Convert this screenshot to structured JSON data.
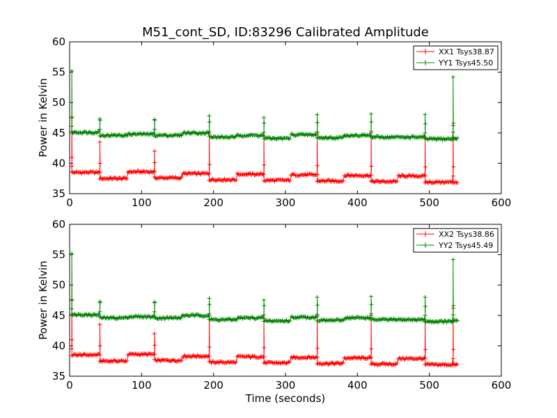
{
  "title": "M51_cont_SD, ID:83296 Calibrated Amplitude",
  "colors": {
    "xx": "#ff0000",
    "yy": "#008000"
  },
  "chart_data": [
    {
      "type": "line",
      "position": "top",
      "ylabel": "Power in Kelvin",
      "xlabel": "",
      "xlim": [
        0,
        600
      ],
      "ylim": [
        35,
        60
      ],
      "xticks": [
        0,
        100,
        200,
        300,
        400,
        500,
        600
      ],
      "yticks": [
        35,
        40,
        45,
        50,
        55,
        60
      ],
      "legend_position": "top-right",
      "marker": "plus",
      "series": [
        {
          "name": "XX1 Tsys38.87",
          "color": "#ff0000",
          "segments": [
            {
              "x0": 3,
              "x1": 41,
              "level": 38.5,
              "spike_x": 3,
              "spike_y": 47.5
            },
            {
              "x0": 42,
              "x1": 80,
              "level": 37.5,
              "spike_x": 42,
              "spike_y": 43.5
            },
            {
              "x0": 81,
              "x1": 118,
              "level": 38.6
            },
            {
              "x0": 118,
              "x1": 156,
              "level": 37.6,
              "spike_x": 118,
              "spike_y": 42.0
            },
            {
              "x0": 157,
              "x1": 194,
              "level": 38.3
            },
            {
              "x0": 194,
              "x1": 232,
              "level": 37.3,
              "spike_x": 194,
              "spike_y": 45.0
            },
            {
              "x0": 233,
              "x1": 270,
              "level": 38.2
            },
            {
              "x0": 270,
              "x1": 307,
              "level": 37.2,
              "spike_x": 270,
              "spike_y": 44.5
            },
            {
              "x0": 308,
              "x1": 344,
              "level": 38.1
            },
            {
              "x0": 344,
              "x1": 381,
              "level": 37.1,
              "spike_x": 344,
              "spike_y": 45.0
            },
            {
              "x0": 382,
              "x1": 419,
              "level": 38.0
            },
            {
              "x0": 419,
              "x1": 456,
              "level": 37.0,
              "spike_x": 419,
              "spike_y": 45.0
            },
            {
              "x0": 457,
              "x1": 494,
              "level": 37.9
            },
            {
              "x0": 494,
              "x1": 532,
              "level": 36.9,
              "spike_x": 494,
              "spike_y": 44.0
            },
            {
              "x0": 533,
              "x1": 540,
              "level": 36.9,
              "spike_x": 533,
              "spike_y": 46.2
            }
          ]
        },
        {
          "name": "YY1 Tsys45.50",
          "color": "#008000",
          "segments": [
            {
              "x0": 3,
              "x1": 41,
              "level": 45.1,
              "spike_x": 3,
              "spike_y": 55.2
            },
            {
              "x0": 42,
              "x1": 80,
              "level": 44.6,
              "spike_x": 42,
              "spike_y": 47.3
            },
            {
              "x0": 81,
              "x1": 118,
              "level": 44.8
            },
            {
              "x0": 118,
              "x1": 156,
              "level": 44.6,
              "spike_x": 118,
              "spike_y": 47.2
            },
            {
              "x0": 157,
              "x1": 194,
              "level": 45.0
            },
            {
              "x0": 194,
              "x1": 232,
              "level": 44.3,
              "spike_x": 194,
              "spike_y": 47.8
            },
            {
              "x0": 233,
              "x1": 270,
              "level": 44.6
            },
            {
              "x0": 270,
              "x1": 307,
              "level": 44.1,
              "spike_x": 270,
              "spike_y": 47.5
            },
            {
              "x0": 308,
              "x1": 344,
              "level": 44.7
            },
            {
              "x0": 344,
              "x1": 381,
              "level": 44.2,
              "spike_x": 344,
              "spike_y": 48.0
            },
            {
              "x0": 382,
              "x1": 419,
              "level": 44.6
            },
            {
              "x0": 419,
              "x1": 456,
              "level": 44.3,
              "spike_x": 419,
              "spike_y": 48.1
            },
            {
              "x0": 457,
              "x1": 494,
              "level": 44.3
            },
            {
              "x0": 494,
              "x1": 532,
              "level": 44.0,
              "spike_x": 494,
              "spike_y": 48.0
            },
            {
              "x0": 533,
              "x1": 540,
              "level": 44.1,
              "spike_x": 533,
              "spike_y": 54.2
            }
          ]
        }
      ]
    },
    {
      "type": "line",
      "position": "bottom",
      "ylabel": "Power in Kelvin",
      "xlabel": "Time (seconds)",
      "xlim": [
        0,
        600
      ],
      "ylim": [
        35,
        60
      ],
      "xticks": [
        0,
        100,
        200,
        300,
        400,
        500,
        600
      ],
      "yticks": [
        35,
        40,
        45,
        50,
        55,
        60
      ],
      "legend_position": "top-right",
      "marker": "plus",
      "series": [
        {
          "name": "XX2 Tsys38.86",
          "color": "#ff0000",
          "segments": [
            {
              "x0": 3,
              "x1": 41,
              "level": 38.5,
              "spike_x": 3,
              "spike_y": 47.5
            },
            {
              "x0": 42,
              "x1": 80,
              "level": 37.5,
              "spike_x": 42,
              "spike_y": 43.5
            },
            {
              "x0": 81,
              "x1": 118,
              "level": 38.6
            },
            {
              "x0": 118,
              "x1": 156,
              "level": 37.6,
              "spike_x": 118,
              "spike_y": 42.0
            },
            {
              "x0": 157,
              "x1": 194,
              "level": 38.3
            },
            {
              "x0": 194,
              "x1": 232,
              "level": 37.3,
              "spike_x": 194,
              "spike_y": 45.0
            },
            {
              "x0": 233,
              "x1": 270,
              "level": 38.2
            },
            {
              "x0": 270,
              "x1": 307,
              "level": 37.2,
              "spike_x": 270,
              "spike_y": 44.5
            },
            {
              "x0": 308,
              "x1": 344,
              "level": 38.1
            },
            {
              "x0": 344,
              "x1": 381,
              "level": 37.1,
              "spike_x": 344,
              "spike_y": 45.0
            },
            {
              "x0": 382,
              "x1": 419,
              "level": 38.0
            },
            {
              "x0": 419,
              "x1": 456,
              "level": 37.0,
              "spike_x": 419,
              "spike_y": 45.0
            },
            {
              "x0": 457,
              "x1": 494,
              "level": 37.9
            },
            {
              "x0": 494,
              "x1": 532,
              "level": 36.9,
              "spike_x": 494,
              "spike_y": 44.0
            },
            {
              "x0": 533,
              "x1": 540,
              "level": 36.9,
              "spike_x": 533,
              "spike_y": 46.2
            }
          ]
        },
        {
          "name": "YY2 Tsys45.49",
          "color": "#008000",
          "segments": [
            {
              "x0": 3,
              "x1": 41,
              "level": 45.1,
              "spike_x": 3,
              "spike_y": 55.2
            },
            {
              "x0": 42,
              "x1": 80,
              "level": 44.6,
              "spike_x": 42,
              "spike_y": 47.3
            },
            {
              "x0": 81,
              "x1": 118,
              "level": 44.8
            },
            {
              "x0": 118,
              "x1": 156,
              "level": 44.6,
              "spike_x": 118,
              "spike_y": 47.2
            },
            {
              "x0": 157,
              "x1": 194,
              "level": 45.0
            },
            {
              "x0": 194,
              "x1": 232,
              "level": 44.3,
              "spike_x": 194,
              "spike_y": 47.8
            },
            {
              "x0": 233,
              "x1": 270,
              "level": 44.6
            },
            {
              "x0": 270,
              "x1": 307,
              "level": 44.1,
              "spike_x": 270,
              "spike_y": 47.5
            },
            {
              "x0": 308,
              "x1": 344,
              "level": 44.7
            },
            {
              "x0": 344,
              "x1": 381,
              "level": 44.2,
              "spike_x": 344,
              "spike_y": 48.0
            },
            {
              "x0": 382,
              "x1": 419,
              "level": 44.6
            },
            {
              "x0": 419,
              "x1": 456,
              "level": 44.3,
              "spike_x": 419,
              "spike_y": 48.1
            },
            {
              "x0": 457,
              "x1": 494,
              "level": 44.3
            },
            {
              "x0": 494,
              "x1": 532,
              "level": 44.0,
              "spike_x": 494,
              "spike_y": 48.0
            },
            {
              "x0": 533,
              "x1": 540,
              "level": 44.1,
              "spike_x": 533,
              "spike_y": 54.2
            }
          ]
        }
      ]
    }
  ]
}
